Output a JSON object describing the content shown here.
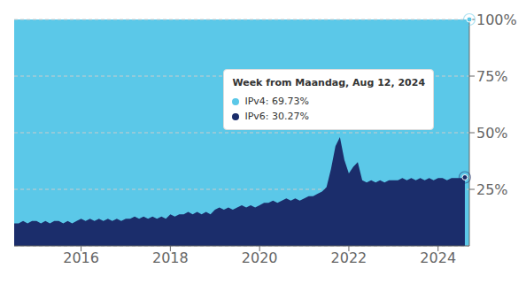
{
  "chart_data": {
    "type": "area",
    "x": [
      2014.5,
      2014.6,
      2014.7,
      2014.8,
      2014.9,
      2015.0,
      2015.1,
      2015.2,
      2015.3,
      2015.4,
      2015.5,
      2015.6,
      2015.7,
      2015.8,
      2015.9,
      2016.0,
      2016.1,
      2016.2,
      2016.3,
      2016.4,
      2016.5,
      2016.6,
      2016.7,
      2016.8,
      2016.9,
      2017.0,
      2017.1,
      2017.2,
      2017.3,
      2017.4,
      2017.5,
      2017.6,
      2017.7,
      2017.8,
      2017.9,
      2018.0,
      2018.1,
      2018.2,
      2018.3,
      2018.4,
      2018.5,
      2018.6,
      2018.7,
      2018.8,
      2018.9,
      2019.0,
      2019.1,
      2019.2,
      2019.3,
      2019.4,
      2019.5,
      2019.6,
      2019.7,
      2019.8,
      2019.9,
      2020.0,
      2020.1,
      2020.2,
      2020.3,
      2020.4,
      2020.5,
      2020.6,
      2020.7,
      2020.8,
      2020.9,
      2021.0,
      2021.1,
      2021.2,
      2021.3,
      2021.4,
      2021.5,
      2021.6,
      2021.7,
      2021.8,
      2021.9,
      2022.0,
      2022.1,
      2022.2,
      2022.3,
      2022.4,
      2022.5,
      2022.6,
      2022.7,
      2022.8,
      2022.9,
      2023.0,
      2023.1,
      2023.2,
      2023.3,
      2023.4,
      2023.5,
      2023.6,
      2023.7,
      2023.8,
      2023.9,
      2024.0,
      2024.1,
      2024.2,
      2024.3,
      2024.4,
      2024.5,
      2024.6
    ],
    "values": [
      10,
      10,
      11,
      10,
      11,
      11,
      10,
      11,
      10,
      11,
      11,
      10,
      11,
      10,
      11,
      12,
      11,
      12,
      11,
      12,
      11,
      12,
      11,
      12,
      11,
      12,
      12,
      13,
      12,
      13,
      12,
      13,
      12,
      13,
      12,
      14,
      13,
      14,
      14,
      15,
      14,
      15,
      14,
      15,
      14,
      16,
      17,
      16,
      17,
      16,
      17,
      18,
      17,
      18,
      17,
      18,
      19,
      19,
      20,
      19,
      20,
      21,
      20,
      21,
      20,
      21,
      22,
      22,
      23,
      24,
      26,
      34,
      44,
      48,
      38,
      32,
      35,
      37,
      29,
      28,
      29,
      28,
      29,
      28,
      29,
      29,
      29,
      30,
      29,
      30,
      29,
      30,
      29,
      30,
      29,
      30,
      30,
      29,
      30,
      30,
      30,
      30
    ],
    "color": "#1b2d6b",
    "xlim": [
      2014.5,
      2024.7
    ],
    "xticks": [
      2016,
      2018,
      2020,
      2022,
      2024
    ],
    "ylim": [
      0,
      100
    ],
    "yticks": [
      {
        "value": 25,
        "label": "25%"
      },
      {
        "value": 50,
        "label": "50%"
      },
      {
        "value": 75,
        "label": "75%"
      },
      {
        "value": 100,
        "label": "100%"
      }
    ],
    "grid": true,
    "highlights": [
      {
        "x": 2024.6,
        "y": 30.27,
        "color": "#1b2d6b"
      },
      {
        "x": 2024.7,
        "y": 100,
        "color": "#5bc8e8"
      }
    ],
    "annotations": [
      {
        "text": "Week from Maandag, Aug 12, 2024"
      },
      {
        "text": "IPv4: 69.73%",
        "color": "#5bc8e8"
      },
      {
        "text": "IPv6: 30.27%",
        "color": "#1b2d6b"
      }
    ]
  }
}
